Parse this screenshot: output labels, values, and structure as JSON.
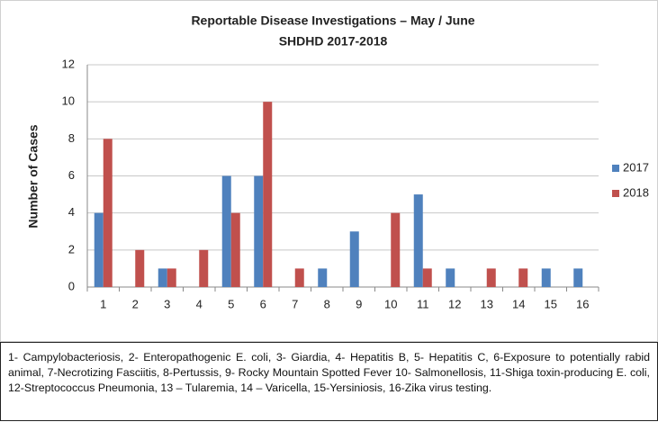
{
  "chart_data": {
    "type": "bar",
    "title": "Reportable Disease Investigations – May / June",
    "subtitle": "SHDHD 2017-2018",
    "y_label": "Number of Cases",
    "categories": [
      "1",
      "2",
      "3",
      "4",
      "5",
      "6",
      "7",
      "8",
      "9",
      "10",
      "11",
      "12",
      "13",
      "14",
      "15",
      "16"
    ],
    "series": [
      {
        "name": "2017",
        "color": "#4f81bd",
        "values": [
          4,
          0,
          1,
          0,
          6,
          6,
          0,
          1,
          3,
          0,
          5,
          1,
          0,
          0,
          1,
          1
        ]
      },
      {
        "name": "2018",
        "color": "#c0504d",
        "values": [
          8,
          2,
          1,
          2,
          4,
          10,
          1,
          0,
          0,
          4,
          1,
          0,
          1,
          1,
          0,
          0
        ]
      }
    ],
    "ylim": [
      0,
      12
    ],
    "yticks": [
      0,
      2,
      4,
      6,
      8,
      10,
      12
    ],
    "grid": true,
    "legend": "right",
    "caption": "1- Campylobacteriosis, 2- Enteropathogenic E. coli, 3- Giardia, 4- Hepatitis B, 5- Hepatitis C, 6-Exposure to potentially rabid animal, 7-Necrotizing Fasciitis, 8-Pertussis, 9- Rocky Mountain Spotted Fever 10- Salmonellosis, 11-Shiga toxin-producing E. coli, 12-Streptococcus Pneumonia, 13 – Tularemia, 14 – Varicella, 15-Yersiniosis, 16-Zika virus testing."
  }
}
